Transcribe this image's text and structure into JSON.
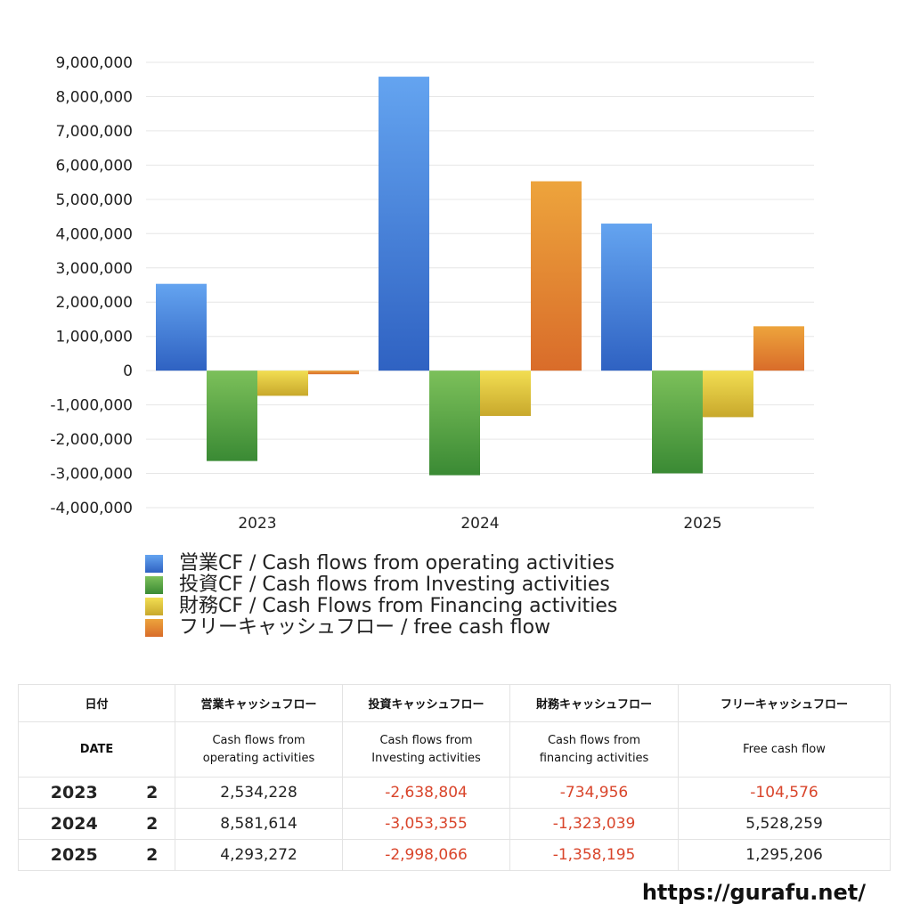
{
  "chart_data": {
    "type": "bar",
    "categories": [
      "2023",
      "2024",
      "2025"
    ],
    "series": [
      {
        "name": "営業CF / Cash flows from operating activities",
        "values": [
          2534228,
          8581614,
          4293272
        ],
        "color_top": "#64a4f0",
        "color_bottom": "#2f62c2"
      },
      {
        "name": "投資CF / Cash flows from Investing activities",
        "values": [
          -2638804,
          -3053355,
          -2998066
        ],
        "color_top": "#7cc05a",
        "color_bottom": "#3a8a34"
      },
      {
        "name": "財務CF / Cash Flows from Financing activities",
        "values": [
          -734956,
          -1323039,
          -1358195
        ],
        "color_top": "#f2de52",
        "color_bottom": "#c8a82c"
      },
      {
        "name": "フリーキャッシュフロー / free cash flow",
        "values": [
          -104576,
          5528259,
          1295206
        ],
        "color_top": "#eda43c",
        "color_bottom": "#d96c2a"
      }
    ],
    "ylim": [
      -4000000,
      9000000
    ],
    "yticks": [
      "9,000,000",
      "8,000,000",
      "7,000,000",
      "6,000,000",
      "5,000,000",
      "4,000,000",
      "3,000,000",
      "2,000,000",
      "1,000,000",
      "0",
      "-1,000,000",
      "-2,000,000",
      "-3,000,000",
      "-4,000,000"
    ],
    "grid": true,
    "legend_position": "bottom"
  },
  "table": {
    "header_top": [
      "日付",
      "営業キャッシュフロー",
      "投資キャッシュフロー",
      "財務キャッシュフロー",
      "フリーキャッシュフロー"
    ],
    "header_bottom": {
      "date": "DATE",
      "operating_l1": "Cash flows from",
      "operating_l2": "operating activities",
      "investing_l1": "Cash flows from",
      "investing_l2": "Investing activities",
      "financing_l1": "Cash flows from",
      "financing_l2": "financing activities",
      "free": "Free cash flow"
    },
    "rows": [
      {
        "year": "2023",
        "count": "2",
        "operating": "2,534,228",
        "investing": "-2,638,804",
        "financing": "-734,956",
        "free": "-104,576"
      },
      {
        "year": "2024",
        "count": "2",
        "operating": "8,581,614",
        "investing": "-3,053,355",
        "financing": "-1,323,039",
        "free": "5,528,259"
      },
      {
        "year": "2025",
        "count": "2",
        "operating": "4,293,272",
        "investing": "-2,998,066",
        "financing": "-1,358,195",
        "free": "1,295,206"
      }
    ]
  },
  "site_url": "https://gurafu.net/"
}
